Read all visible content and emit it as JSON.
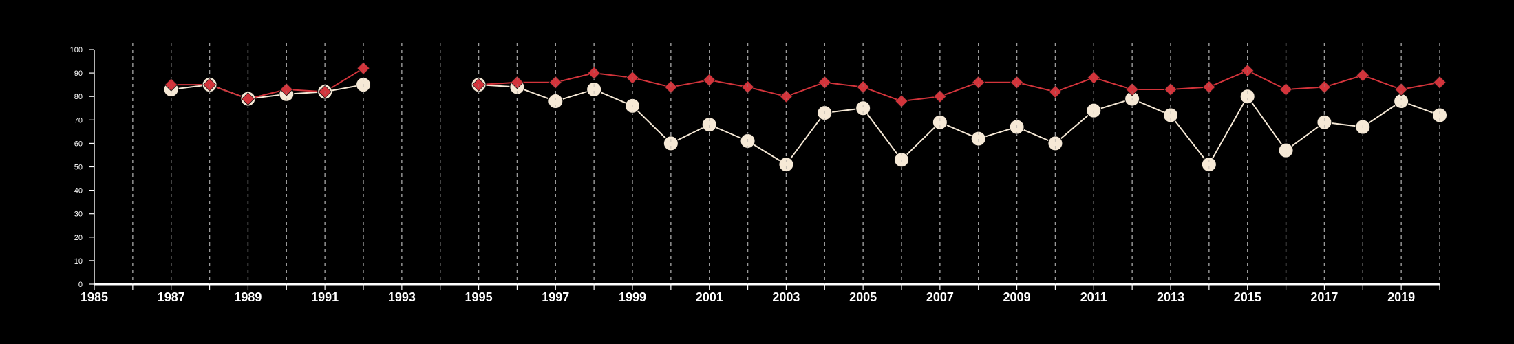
{
  "chart_data": {
    "type": "line",
    "x_ticks": [
      "1985",
      "1987",
      "1989",
      "1991",
      "1993",
      "1995",
      "1997",
      "1999",
      "2001",
      "2003",
      "2005",
      "2007",
      "2009",
      "2011",
      "2013",
      "2015",
      "2017",
      "2019"
    ],
    "y_ticks": [
      "0",
      "10",
      "20",
      "30",
      "40",
      "50",
      "60",
      "70",
      "80",
      "90",
      "100"
    ],
    "xlim": [
      1985,
      2020
    ],
    "ylim": [
      0,
      100
    ],
    "grid": "vertical dashed lines at each year",
    "colors": {
      "background": "#000000",
      "axis": "#ffffff",
      "grid": "#a8a8a8",
      "series_red": "#d3343b",
      "series_cream": "#f6e9d6"
    },
    "series": [
      {
        "marker": "diamond",
        "color": "#d3343b",
        "segments": [
          [
            [
              1987,
              85
            ],
            [
              1988,
              85
            ],
            [
              1989,
              79
            ],
            [
              1990,
              83
            ],
            [
              1991,
              82
            ],
            [
              1992,
              92
            ]
          ],
          [
            [
              1995,
              85
            ],
            [
              1996,
              86
            ],
            [
              1997,
              86
            ],
            [
              1998,
              90
            ],
            [
              1999,
              88
            ],
            [
              2000,
              84
            ],
            [
              2001,
              87
            ],
            [
              2002,
              84
            ],
            [
              2003,
              80
            ],
            [
              2004,
              86
            ],
            [
              2005,
              84
            ],
            [
              2006,
              78
            ],
            [
              2007,
              80
            ],
            [
              2008,
              86
            ],
            [
              2009,
              86
            ],
            [
              2010,
              82
            ],
            [
              2011,
              88
            ],
            [
              2012,
              83
            ],
            [
              2013,
              83
            ],
            [
              2014,
              84
            ],
            [
              2015,
              91
            ],
            [
              2016,
              83
            ],
            [
              2017,
              84
            ],
            [
              2018,
              89
            ],
            [
              2019,
              83
            ],
            [
              2020,
              86
            ]
          ]
        ]
      },
      {
        "marker": "circle",
        "color": "#f6e9d6",
        "segments": [
          [
            [
              1987,
              83
            ],
            [
              1988,
              85
            ],
            [
              1989,
              79
            ],
            [
              1990,
              81
            ],
            [
              1991,
              82
            ],
            [
              1992,
              85
            ]
          ],
          [
            [
              1995,
              85
            ],
            [
              1996,
              84
            ],
            [
              1997,
              78
            ],
            [
              1998,
              83
            ],
            [
              1999,
              76
            ],
            [
              2000,
              60
            ],
            [
              2001,
              68
            ],
            [
              2002,
              61
            ],
            [
              2003,
              51
            ],
            [
              2004,
              73
            ],
            [
              2005,
              75
            ],
            [
              2006,
              53
            ],
            [
              2007,
              69
            ],
            [
              2008,
              62
            ],
            [
              2009,
              67
            ],
            [
              2010,
              60
            ],
            [
              2011,
              74
            ],
            [
              2012,
              79
            ],
            [
              2013,
              72
            ],
            [
              2014,
              51
            ],
            [
              2015,
              80
            ],
            [
              2016,
              57
            ],
            [
              2017,
              69
            ],
            [
              2018,
              67
            ],
            [
              2019,
              78
            ],
            [
              2020,
              72
            ]
          ]
        ]
      }
    ]
  }
}
